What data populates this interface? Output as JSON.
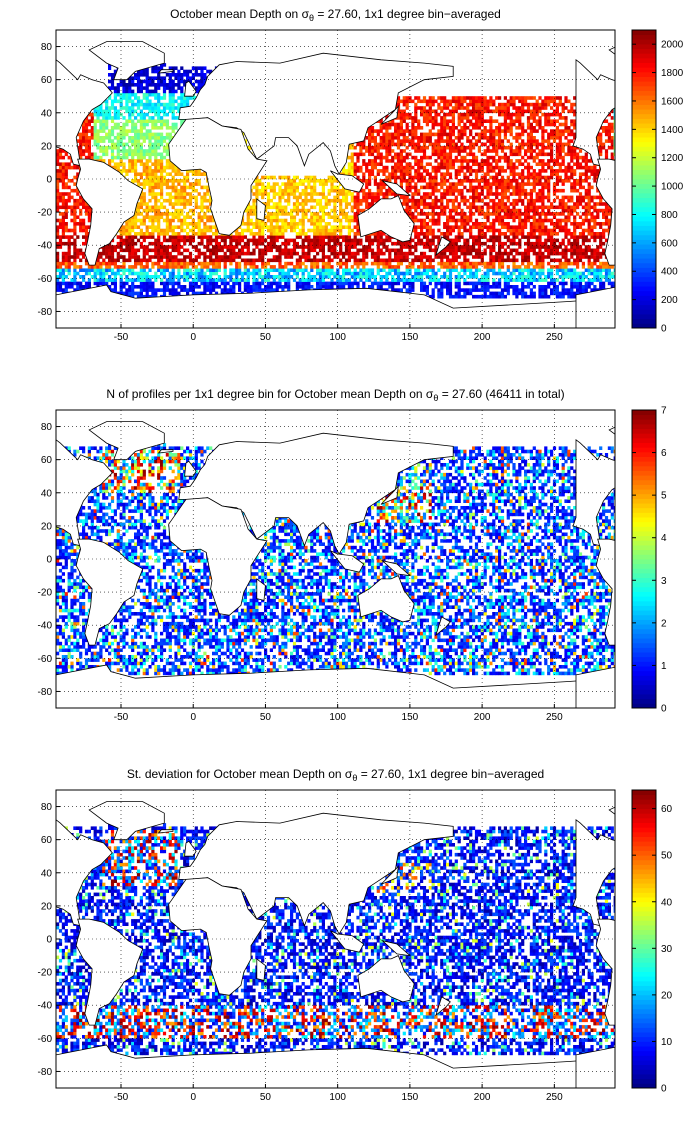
{
  "chart_data": [
    {
      "type": "heatmap",
      "title_prefix": "October mean Depth on σ",
      "title_sub": "θ",
      "title_suffix": " = 27.60, 1x1 degree bin−averaged",
      "xlim": [
        -95,
        292
      ],
      "ylim": [
        -90,
        90
      ],
      "x_ticks": [
        "-50",
        "0",
        "50",
        "100",
        "150",
        "200",
        "250"
      ],
      "y_ticks": [
        "80",
        "60",
        "40",
        "20",
        "0",
        "-20",
        "-40",
        "-60",
        "-80"
      ],
      "colorbar": {
        "min": 0,
        "max": 2100,
        "ticks": [
          "2000",
          "1800",
          "1600",
          "1400",
          "1200",
          "1000",
          "800",
          "600",
          "400",
          "200",
          "0"
        ]
      },
      "grid": true,
      "regions": [
        {
          "area": "North Atlantic subpolar",
          "value": 200
        },
        {
          "area": "North Atlantic subtropical",
          "value": 950
        },
        {
          "area": "South Atlantic",
          "value": 1450
        },
        {
          "area": "Indian Ocean",
          "value": 1400
        },
        {
          "area": "North Pacific",
          "value": 1750
        },
        {
          "area": "South Pacific",
          "value": 1800
        },
        {
          "area": "Southern Ocean front",
          "value": 1900
        },
        {
          "area": "Antarctic margin",
          "value": 200
        }
      ]
    },
    {
      "type": "heatmap",
      "title_prefix": "N of profiles per 1x1 degree bin for October mean Depth on σ",
      "title_sub": "θ",
      "title_suffix": " = 27.60 (46411 in total)",
      "xlim": [
        -95,
        292
      ],
      "ylim": [
        -90,
        90
      ],
      "x_ticks": [
        "-50",
        "0",
        "50",
        "100",
        "150",
        "200",
        "250"
      ],
      "y_ticks": [
        "80",
        "60",
        "40",
        "20",
        "0",
        "-20",
        "-40",
        "-60",
        "-80"
      ],
      "colorbar": {
        "min": 0,
        "max": 7,
        "ticks": [
          "7",
          "6",
          "5",
          "4",
          "3",
          "2",
          "1",
          "0"
        ]
      },
      "grid": true,
      "regions": [
        {
          "area": "North Atlantic subpolar",
          "value": 5
        },
        {
          "area": "Kuroshio region",
          "value": 4
        },
        {
          "area": "Open ocean typical",
          "value": 1
        }
      ]
    },
    {
      "type": "heatmap",
      "title_prefix": "St. deviation for October mean Depth on σ",
      "title_sub": "θ",
      "title_suffix": " = 27.60, 1x1 degree bin−averaged",
      "xlim": [
        -95,
        292
      ],
      "ylim": [
        -90,
        90
      ],
      "x_ticks": [
        "-50",
        "0",
        "50",
        "100",
        "150",
        "200",
        "250"
      ],
      "y_ticks": [
        "80",
        "60",
        "40",
        "20",
        "0",
        "-20",
        "-40",
        "-60",
        "-80"
      ],
      "colorbar": {
        "min": 0,
        "max": 64,
        "ticks": [
          "60",
          "50",
          "40",
          "30",
          "20",
          "10",
          "0"
        ]
      },
      "grid": true,
      "regions": [
        {
          "area": "North Atlantic subpolar",
          "value": 55
        },
        {
          "area": "Antarctic Circumpolar Current",
          "value": 60
        },
        {
          "area": "Open ocean typical",
          "value": 8
        }
      ]
    }
  ]
}
